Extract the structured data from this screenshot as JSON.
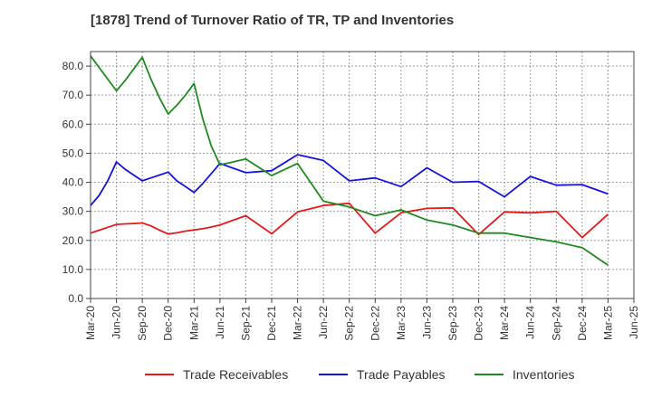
{
  "chart_data": {
    "type": "line",
    "title": "[1878]  Trend of Turnover Ratio of TR, TP and Inventories",
    "xlabel": "",
    "ylabel": "",
    "ylim": [
      0,
      85
    ],
    "yticks": [
      "0.0",
      "10.0",
      "20.0",
      "30.0",
      "40.0",
      "50.0",
      "60.0",
      "70.0",
      "80.0"
    ],
    "ytick_values": [
      0,
      10,
      20,
      30,
      40,
      50,
      60,
      70,
      80
    ],
    "xticks": [
      "Mar-20",
      "Jun-20",
      "Sep-20",
      "Dec-20",
      "Mar-21",
      "Jun-21",
      "Sep-21",
      "Dec-21",
      "Mar-22",
      "Jun-22",
      "Sep-22",
      "Dec-22",
      "Mar-23",
      "Jun-23",
      "Sep-23",
      "Dec-23",
      "Mar-24",
      "Jun-24",
      "Sep-24",
      "Dec-24",
      "Mar-25",
      "Jun-25"
    ],
    "x": [
      "Mar-20",
      "Apr-20",
      "May-20",
      "Jun-20",
      "Jul-20",
      "Aug-20",
      "Sep-20",
      "Oct-20",
      "Nov-20",
      "Dec-20",
      "Jan-21",
      "Feb-21",
      "Mar-21",
      "Apr-21",
      "May-21",
      "Jun-21",
      "Sep-21",
      "Dec-21",
      "Mar-22",
      "Jun-22",
      "Sep-22",
      "Dec-22",
      "Mar-23",
      "Jun-23",
      "Sep-23",
      "Dec-23",
      "Mar-24",
      "Jun-24",
      "Sep-24",
      "Dec-24",
      "Mar-25"
    ],
    "series": [
      {
        "name": "Trade Receivables",
        "color": "#e41a1a",
        "values": [
          22.5,
          23.5,
          24.5,
          25.5,
          25.7,
          25.8,
          26.0,
          25.0,
          23.5,
          22.2,
          22.6,
          23.2,
          23.6,
          24.0,
          24.6,
          25.3,
          28.5,
          22.3,
          29.8,
          32.0,
          32.8,
          22.5,
          29.5,
          31.0,
          31.2,
          22.0,
          29.8,
          29.5,
          30.0,
          21.0,
          29.0
        ]
      },
      {
        "name": "Trade Payables",
        "color": "#1414d9",
        "values": [
          32.0,
          35.5,
          40.5,
          47.0,
          44.5,
          42.5,
          40.5,
          41.5,
          42.5,
          43.5,
          40.5,
          38.5,
          36.5,
          39.5,
          43.0,
          46.5,
          43.3,
          44.0,
          49.5,
          47.5,
          40.5,
          41.5,
          38.5,
          45.0,
          40.0,
          40.3,
          35.0,
          42.0,
          39.0,
          39.2,
          36.0
        ]
      },
      {
        "name": "Inventories",
        "color": "#1f8a1f",
        "values": [
          83.5,
          79.5,
          75.5,
          71.5,
          75.0,
          79.0,
          83.0,
          75.5,
          69.0,
          63.5,
          66.5,
          70.0,
          74.0,
          62.0,
          52.5,
          46.0,
          48.0,
          42.3,
          46.5,
          33.5,
          31.5,
          28.5,
          30.5,
          27.0,
          25.3,
          22.5,
          22.5,
          21.0,
          19.5,
          17.5,
          11.5
        ]
      }
    ],
    "legend_position": "bottom",
    "grid": true
  }
}
